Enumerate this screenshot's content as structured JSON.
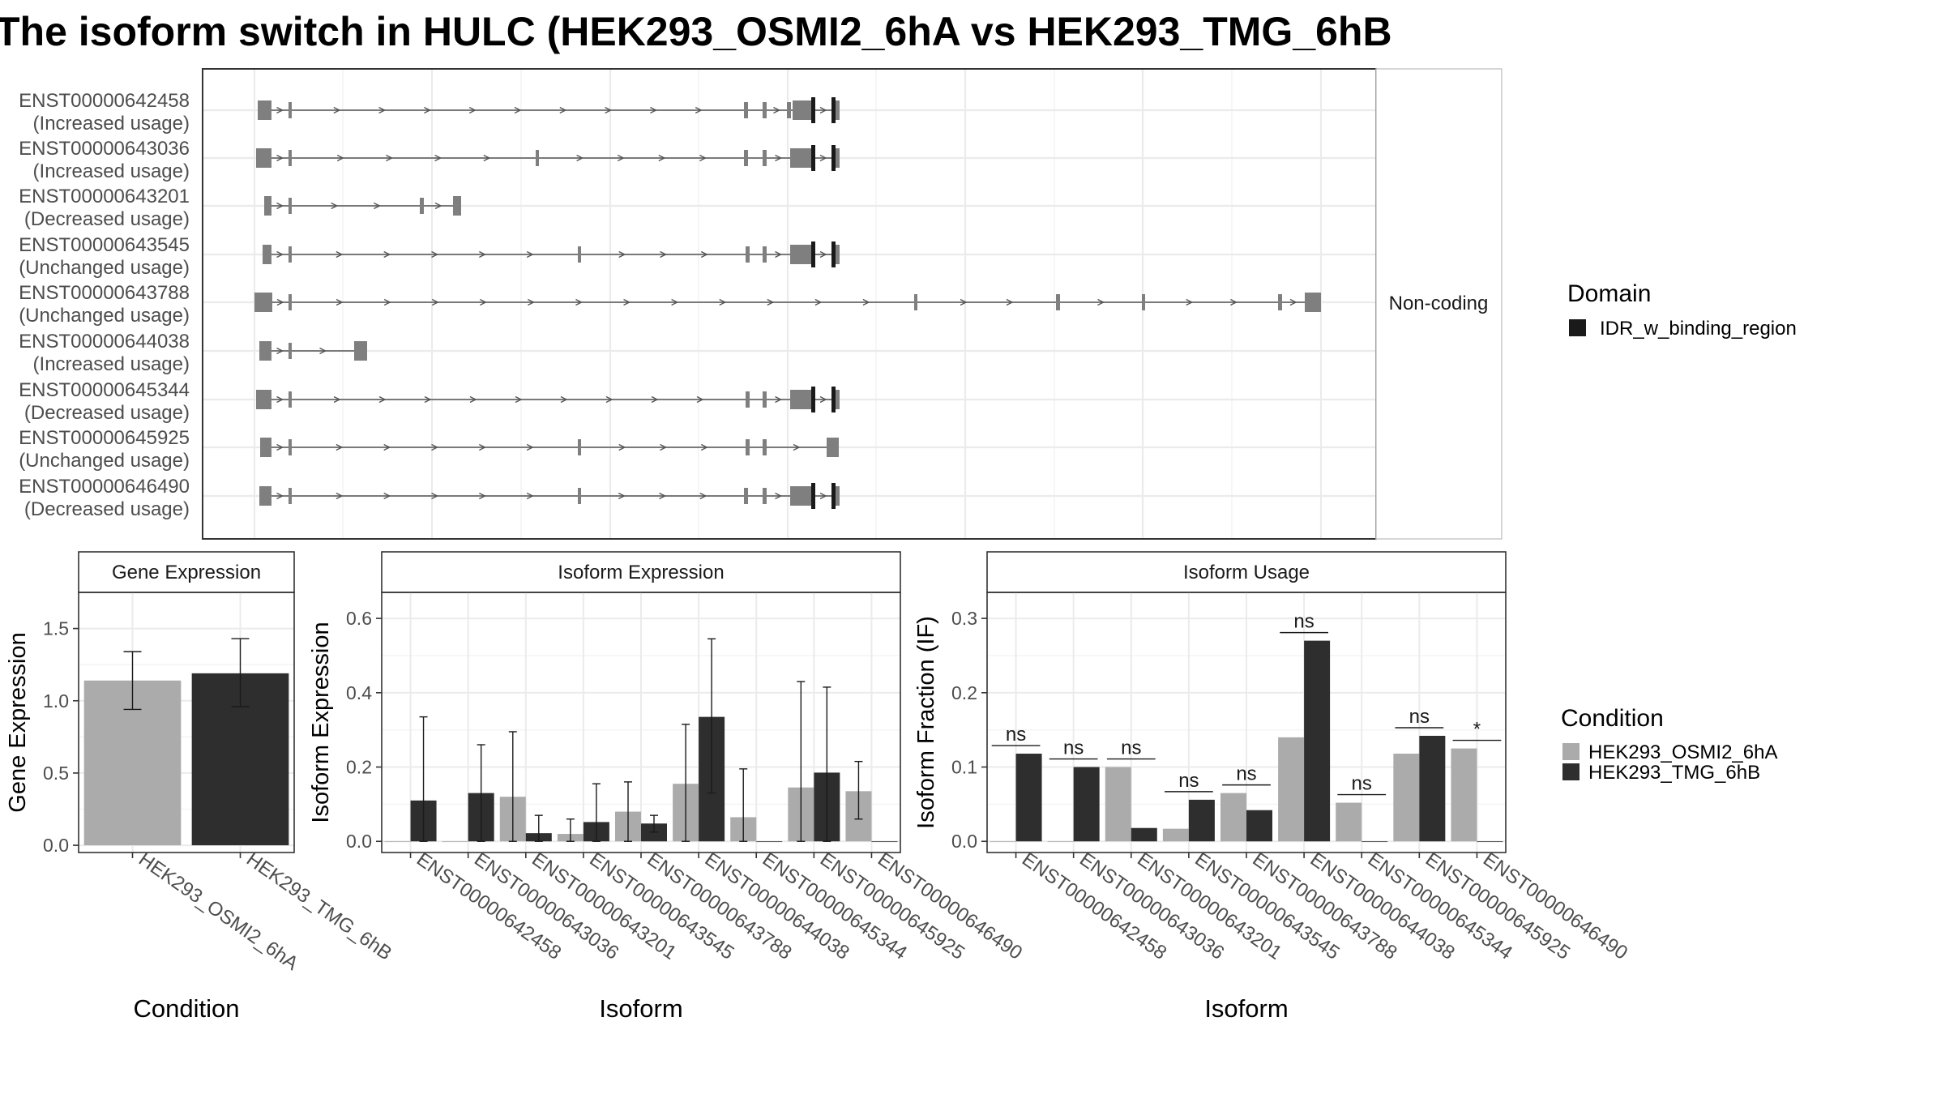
{
  "title": "The isoform switch in HULC (HEK293_OSMI2_6hA vs HEK293_TMG_6hB",
  "colors": {
    "condition_a": "#ababab",
    "condition_b": "#2e2e2e",
    "exon": "#7f7f7f",
    "domain": "#1a1a1a",
    "grid": "#ebebeb",
    "axis_text": "#4d4d4d",
    "panel_border": "#333333"
  },
  "structure_panel": {
    "facet_label": "Non-coding",
    "transcripts": [
      {
        "id": "ENST00000642458",
        "usage": "(Increased usage)"
      },
      {
        "id": "ENST00000643036",
        "usage": "(Increased usage)"
      },
      {
        "id": "ENST00000643201",
        "usage": "(Decreased usage)"
      },
      {
        "id": "ENST00000643545",
        "usage": "(Unchanged usage)"
      },
      {
        "id": "ENST00000643788",
        "usage": "(Unchanged usage)"
      },
      {
        "id": "ENST00000644038",
        "usage": "(Increased usage)"
      },
      {
        "id": "ENST00000645344",
        "usage": "(Decreased usage)"
      },
      {
        "id": "ENST00000645925",
        "usage": "(Unchanged usage)"
      },
      {
        "id": "ENST00000646490",
        "usage": "(Decreased usage)"
      }
    ]
  },
  "domain_legend": {
    "title": "Domain",
    "items": [
      "IDR_w_binding_region"
    ]
  },
  "condition_legend": {
    "title": "Condition",
    "items": [
      "HEK293_OSMI2_6hA",
      "HEK293_TMG_6hB"
    ]
  },
  "chart_data": [
    {
      "type": "bar",
      "panel": "Gene Expression",
      "xlabel": "Condition",
      "ylabel": "Gene Expression",
      "ylim": [
        -0.05,
        1.75
      ],
      "yticks": [
        0.0,
        0.5,
        1.0,
        1.5
      ],
      "ytick_labels": [
        "0.0",
        "0.5",
        "1.0",
        "1.5"
      ],
      "categories": [
        "HEK293_OSMI2_6hA",
        "HEK293_TMG_6hB"
      ],
      "values": [
        1.14,
        1.19
      ],
      "error_low": [
        0.94,
        0.96
      ],
      "error_high": [
        1.34,
        1.43
      ]
    },
    {
      "type": "bar",
      "panel": "Isoform Expression",
      "xlabel": "Isoform",
      "ylabel": "Isoform Expression",
      "ylim": [
        -0.03,
        0.67
      ],
      "yticks": [
        0.0,
        0.2,
        0.4,
        0.6
      ],
      "ytick_labels": [
        "0.0",
        "0.2",
        "0.4",
        "0.6"
      ],
      "categories": [
        "ENST00000642458",
        "ENST00000643036",
        "ENST00000643201",
        "ENST00000643545",
        "ENST00000643788",
        "ENST00000644038",
        "ENST00000645344",
        "ENST00000645925",
        "ENST00000646490"
      ],
      "series": [
        {
          "name": "HEK293_OSMI2_6hA",
          "values": [
            0.0,
            0.0,
            0.12,
            0.02,
            0.08,
            0.155,
            0.065,
            0.145,
            0.135
          ],
          "error_low": [
            0.0,
            0.0,
            0.0,
            0.0,
            0.0,
            0.0,
            0.0,
            0.0,
            0.06
          ],
          "error_high": [
            0.0,
            0.0,
            0.295,
            0.06,
            0.16,
            0.315,
            0.195,
            0.43,
            0.215
          ]
        },
        {
          "name": "HEK293_TMG_6hB",
          "values": [
            0.11,
            0.13,
            0.022,
            0.052,
            0.048,
            0.335,
            0.0,
            0.185,
            0.0
          ],
          "error_low": [
            0.0,
            0.0,
            0.0,
            0.0,
            0.025,
            0.13,
            0.0,
            0.0,
            0.0
          ],
          "error_high": [
            0.335,
            0.26,
            0.07,
            0.155,
            0.07,
            0.545,
            0.0,
            0.415,
            0.0
          ]
        }
      ]
    },
    {
      "type": "bar",
      "panel": "Isoform Usage",
      "xlabel": "Isoform",
      "ylabel": "Isoform Fraction (IF)",
      "ylim": [
        -0.015,
        0.335
      ],
      "yticks": [
        0.0,
        0.1,
        0.2,
        0.3
      ],
      "ytick_labels": [
        "0.0",
        "0.1",
        "0.2",
        "0.3"
      ],
      "categories": [
        "ENST00000642458",
        "ENST00000643036",
        "ENST00000643201",
        "ENST00000643545",
        "ENST00000643788",
        "ENST00000644038",
        "ENST00000645344",
        "ENST00000645925",
        "ENST00000646490"
      ],
      "series": [
        {
          "name": "HEK293_OSMI2_6hA",
          "values": [
            0.0,
            0.0,
            0.1,
            0.017,
            0.065,
            0.14,
            0.052,
            0.118,
            0.125
          ]
        },
        {
          "name": "HEK293_TMG_6hB",
          "values": [
            0.118,
            0.1,
            0.018,
            0.056,
            0.042,
            0.27,
            0.0,
            0.142,
            0.0
          ]
        }
      ],
      "significance": [
        "ns",
        "ns",
        "ns",
        "ns",
        "ns",
        "ns",
        "ns",
        "ns",
        "*"
      ]
    }
  ]
}
